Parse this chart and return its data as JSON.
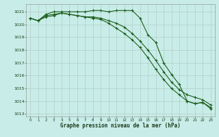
{
  "title": "Graphe pression niveau de la mer (hPa)",
  "xlabel": "Graphe pression niveau de la mer (hPa)",
  "xlim": [
    -0.5,
    23.5
  ],
  "ylim": [
    1012.8,
    1021.6
  ],
  "yticks": [
    1013,
    1014,
    1015,
    1016,
    1017,
    1018,
    1019,
    1020,
    1021
  ],
  "xticks": [
    0,
    1,
    2,
    3,
    4,
    5,
    6,
    7,
    8,
    9,
    10,
    11,
    12,
    13,
    14,
    15,
    16,
    17,
    18,
    19,
    20,
    21,
    22,
    23
  ],
  "bg_color": "#c8ede8",
  "grid_color": "#b0ccc8",
  "line_color": "#1a5c1a",
  "series": [
    [
      1020.5,
      1020.3,
      1020.8,
      1021.0,
      1021.0,
      1021.0,
      1021.0,
      1021.0,
      1021.1,
      1021.1,
      1021.0,
      1021.1,
      1021.1,
      1021.1,
      1020.5,
      1019.2,
      1018.6,
      1017.0,
      1016.1,
      1015.3,
      1014.0,
      1013.8,
      1013.9,
      1013.4
    ],
    [
      1020.5,
      1020.3,
      1020.7,
      1020.8,
      1020.9,
      1020.8,
      1020.7,
      1020.6,
      1020.6,
      1020.5,
      1020.3,
      1020.1,
      1019.8,
      1019.3,
      1018.7,
      1018.0,
      1017.2,
      1016.3,
      1015.5,
      1014.9,
      1014.5,
      1014.3,
      1014.1,
      1013.7
    ],
    [
      1020.5,
      1020.3,
      1020.6,
      1020.7,
      1020.9,
      1020.8,
      1020.7,
      1020.6,
      1020.5,
      1020.4,
      1020.1,
      1019.7,
      1019.3,
      1018.8,
      1018.2,
      1017.4,
      1016.5,
      1015.7,
      1015.0,
      1014.5,
      1014.0,
      1013.8,
      1013.9,
      1013.5
    ]
  ]
}
